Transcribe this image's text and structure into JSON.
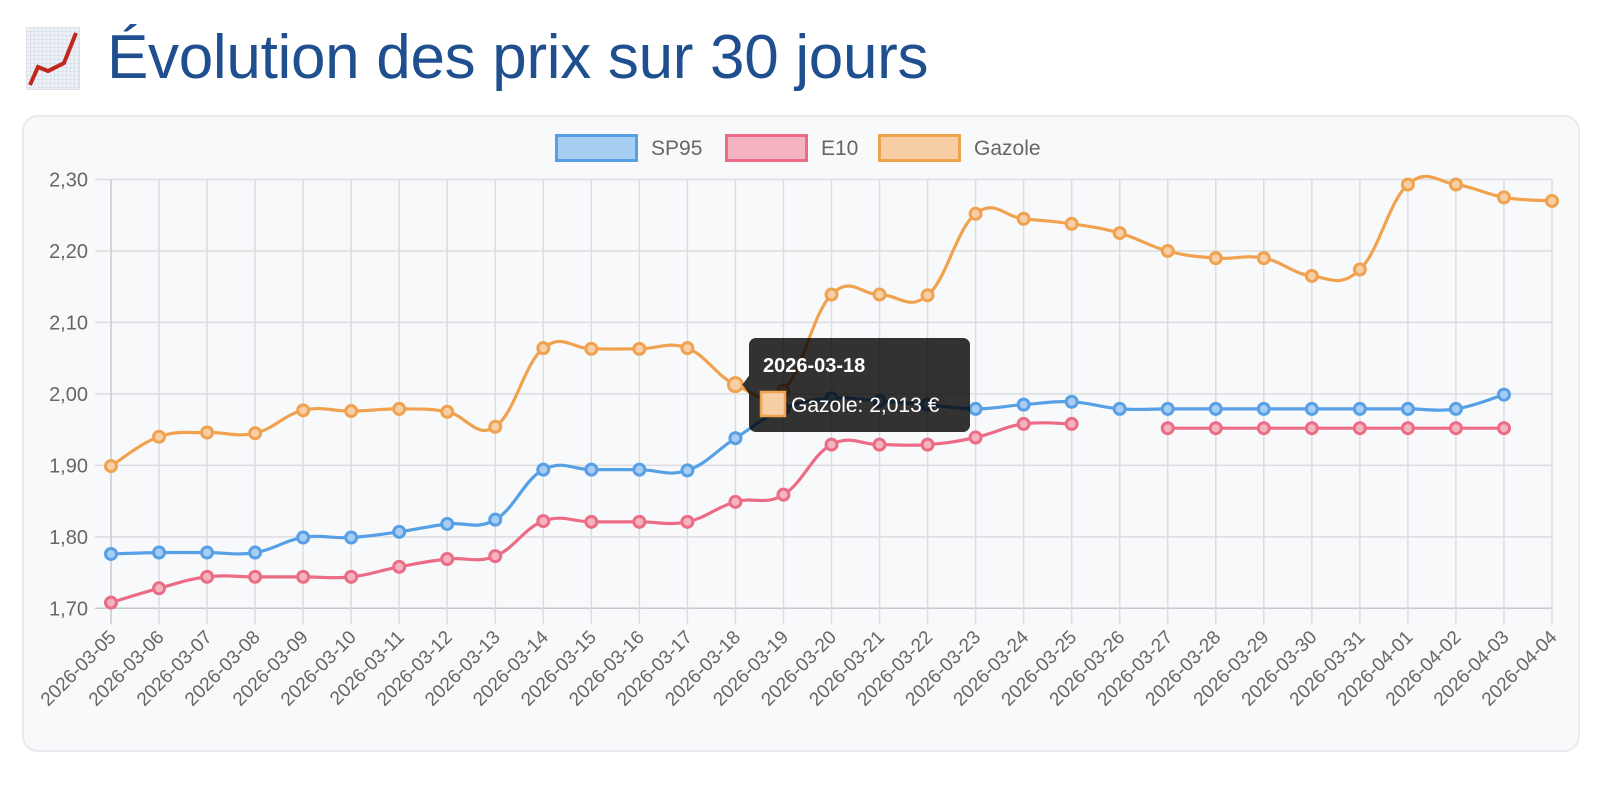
{
  "page": {
    "title": "Évolution des prix sur 30 jours",
    "title_icon": "chart-increasing-icon"
  },
  "chart_data": {
    "type": "line",
    "title": "",
    "xlabel": "",
    "ylabel": "",
    "ylim": [
      1.7,
      2.3
    ],
    "y_ticks": [
      "2,30",
      "2,20",
      "2,10",
      "2,00",
      "1,90",
      "1,80",
      "1,70"
    ],
    "y_tick_values": [
      2.3,
      2.2,
      2.1,
      2.0,
      1.9,
      1.8,
      1.7
    ],
    "grid": true,
    "legend_position": "top-center",
    "categories": [
      "2026-03-05",
      "2026-03-06",
      "2026-03-07",
      "2026-03-08",
      "2026-03-09",
      "2026-03-10",
      "2026-03-11",
      "2026-03-12",
      "2026-03-13",
      "2026-03-14",
      "2026-03-15",
      "2026-03-16",
      "2026-03-17",
      "2026-03-18",
      "2026-03-19",
      "2026-03-20",
      "2026-03-21",
      "2026-03-22",
      "2026-03-23",
      "2026-03-24",
      "2026-03-25",
      "2026-03-26",
      "2026-03-27",
      "2026-03-28",
      "2026-03-29",
      "2026-03-30",
      "2026-03-31",
      "2026-04-01",
      "2026-04-02",
      "2026-04-03",
      "2026-04-04"
    ],
    "series": [
      {
        "name": "SP95",
        "color": "#57a0e5",
        "fill": "#a8cdf2",
        "values": [
          1.776,
          1.778,
          1.778,
          1.778,
          1.799,
          1.799,
          1.807,
          1.818,
          1.824,
          1.894,
          1.894,
          1.894,
          1.893,
          1.938,
          1.979,
          1.994,
          1.99,
          1.985,
          1.979,
          1.985,
          1.989,
          1.979,
          1.979,
          1.979,
          1.979,
          1.979,
          1.979,
          1.979,
          1.979,
          1.999,
          null
        ]
      },
      {
        "name": "E10",
        "color": "#ec6c86",
        "fill": "#f4b3c0",
        "values": [
          1.708,
          1.728,
          1.744,
          1.744,
          1.744,
          1.744,
          1.758,
          1.769,
          1.773,
          1.822,
          1.821,
          1.821,
          1.821,
          1.849,
          1.859,
          1.929,
          1.929,
          1.929,
          1.939,
          1.958,
          1.958,
          null,
          1.952,
          1.952,
          1.952,
          1.952,
          1.952,
          1.952,
          1.952,
          1.952,
          null
        ]
      },
      {
        "name": "Gazole",
        "color": "#f0a24f",
        "fill": "#f6cfa6",
        "values": [
          1.899,
          1.94,
          1.946,
          1.945,
          1.977,
          1.976,
          1.979,
          1.975,
          1.954,
          2.064,
          2.063,
          2.063,
          2.064,
          2.013,
          2.005,
          2.139,
          2.139,
          2.138,
          2.252,
          2.245,
          2.238,
          2.225,
          2.2,
          2.19,
          2.19,
          2.165,
          2.174,
          2.293,
          2.293,
          2.275,
          2.27
        ]
      }
    ],
    "tooltip": {
      "title": "2026-03-18",
      "series": "Gazole",
      "index": 13,
      "label": "Gazole: 2,013 €"
    }
  }
}
